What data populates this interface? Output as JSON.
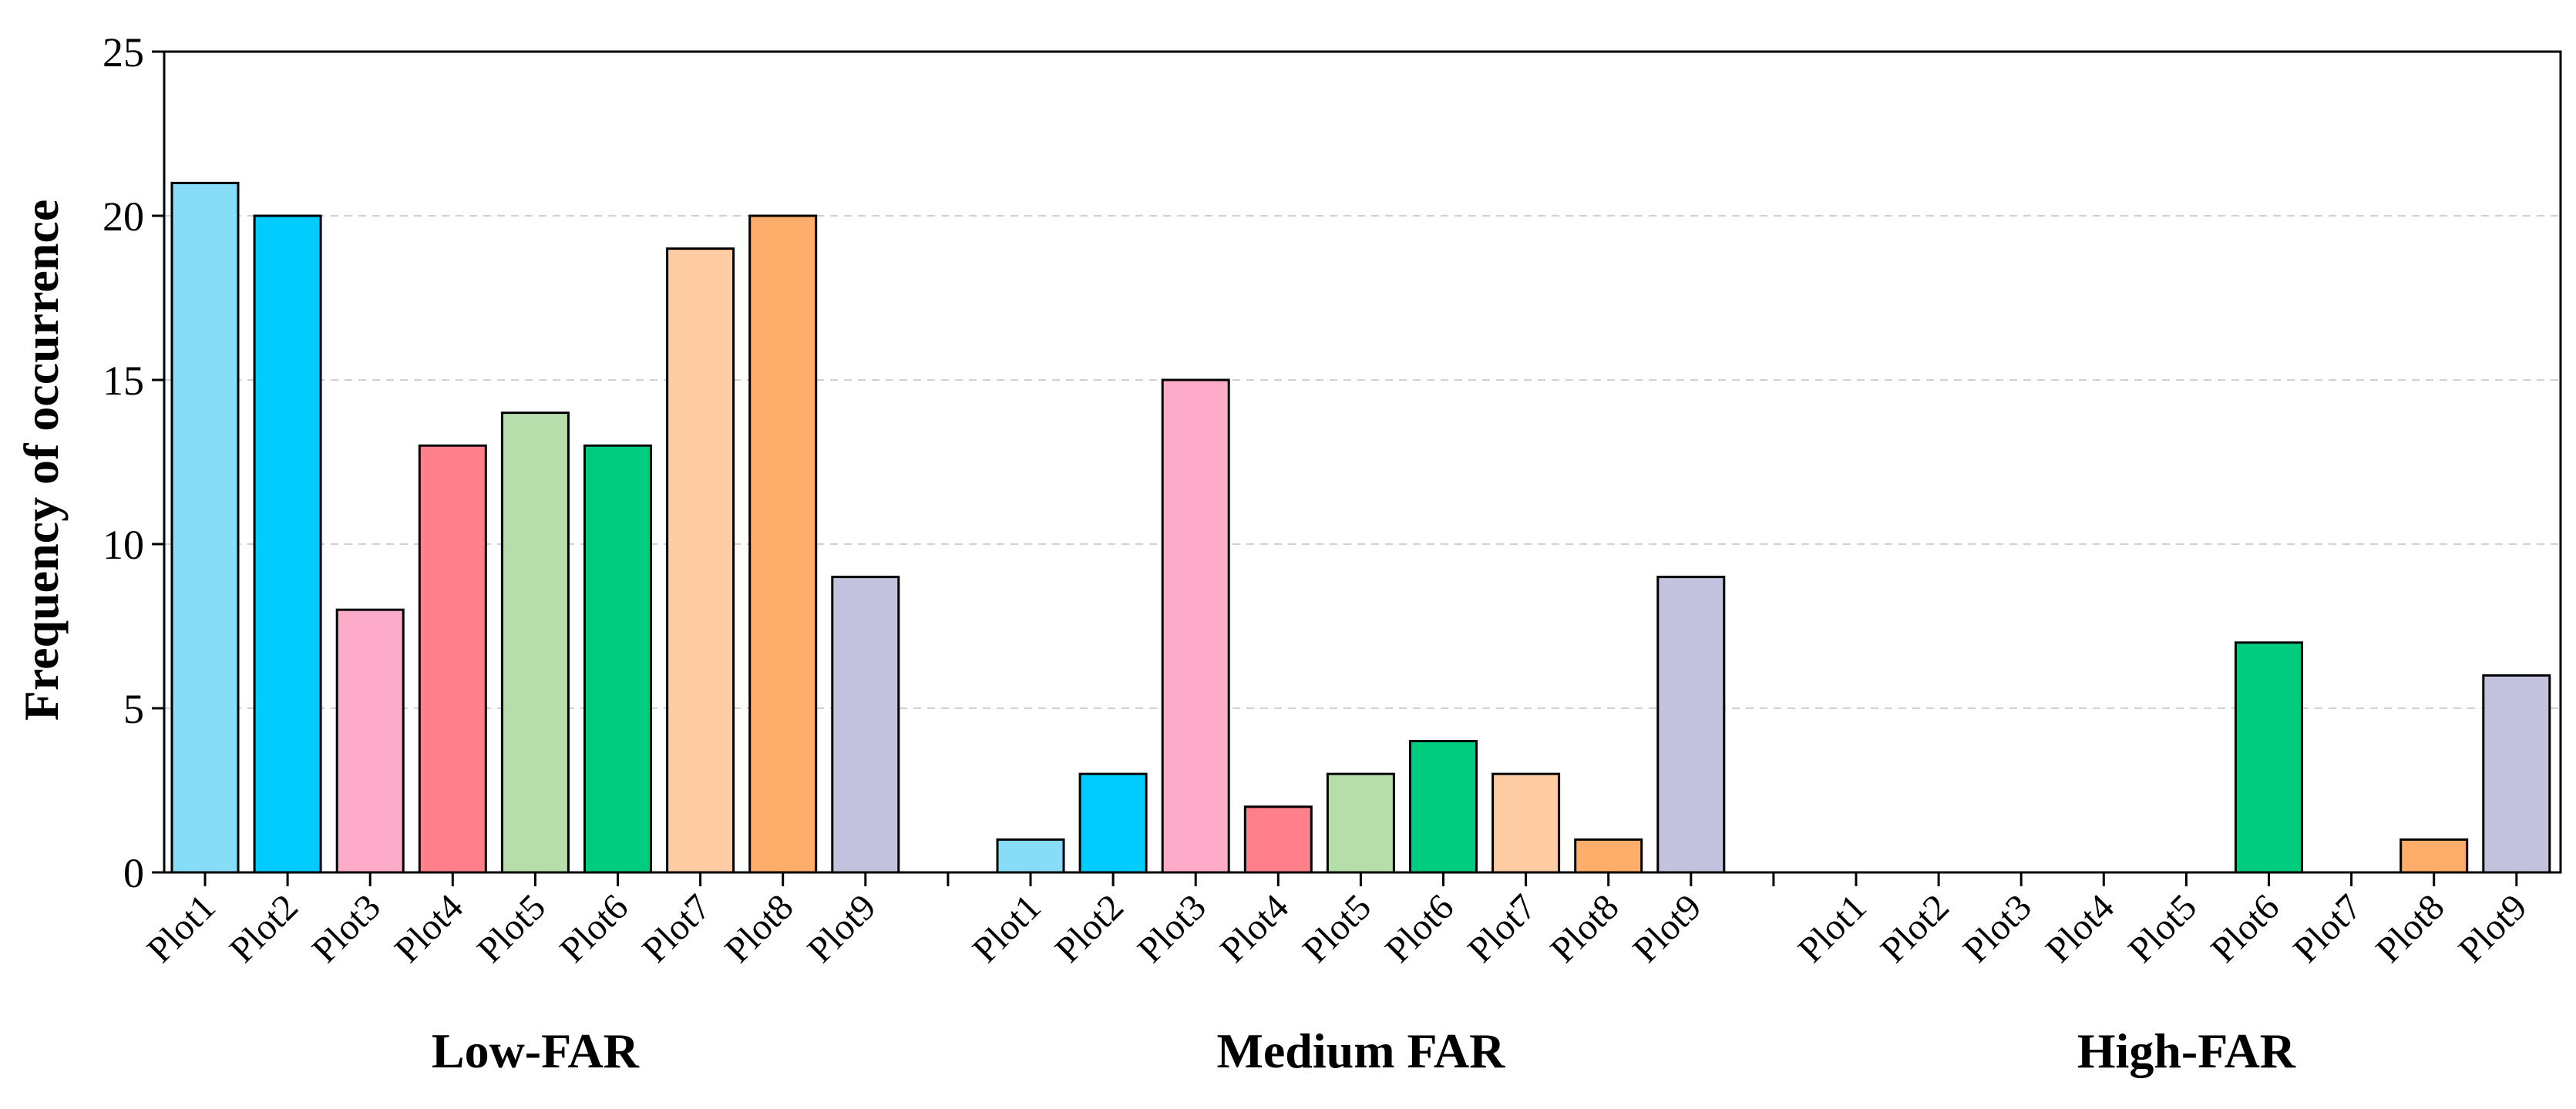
{
  "chart_data": {
    "type": "bar",
    "ylabel": "Frequency of occurrence",
    "xlabel": "",
    "ylim": [
      0,
      25
    ],
    "yticks": [
      0,
      5,
      10,
      15,
      20,
      25
    ],
    "grid": "horizontal dashed",
    "categories": [
      "Plot1",
      "Plot2",
      "Plot3",
      "Plot4",
      "Plot5",
      "Plot6",
      "Plot7",
      "Plot8",
      "Plot9"
    ],
    "colors": [
      "#87DDF7",
      "#00CCFF",
      "#FFACCB",
      "#FF7F8A",
      "#B5DEAA",
      "#00CC7F",
      "#FFCCA3",
      "#FFAD6A",
      "#C3C3E0"
    ],
    "groups": [
      {
        "name": "Low-FAR",
        "values": [
          21,
          20,
          8,
          13,
          14,
          13,
          19,
          20,
          9
        ]
      },
      {
        "name": "Medium FAR",
        "values": [
          1,
          3,
          15,
          2,
          3,
          4,
          3,
          1,
          9
        ]
      },
      {
        "name": "High-FAR",
        "values": [
          0,
          0,
          0,
          0,
          0,
          7,
          0,
          1,
          6
        ]
      }
    ]
  }
}
